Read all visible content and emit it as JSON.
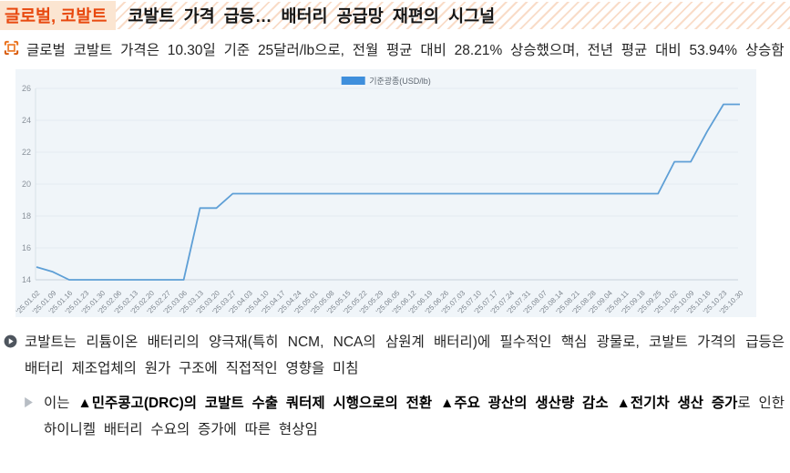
{
  "header": {
    "tag": "글로벌, 코발트",
    "title": "코발트 가격 급등… 배터리 공급망 재편의 시그널"
  },
  "summary": {
    "text": "글로벌 코발트 가격은 10.30일 기준 25달러/lb으로, 전월 평균 대비 28.21% 상승했으며, 전년 평균 대비 53.94% 상승함"
  },
  "chart_data": {
    "type": "line",
    "title": "",
    "xlabel": "",
    "ylabel": "USD/lb",
    "legend": [
      "기준광종(USD/lb)"
    ],
    "legend_position": "top-center",
    "grid": true,
    "ylim": [
      14,
      26
    ],
    "yticks": [
      14,
      16,
      18,
      20,
      22,
      24,
      26
    ],
    "x": [
      "'25.01.02",
      "'25.01.09",
      "'25.01.16",
      "'25.01.23",
      "'25.01.30",
      "'25.02.06",
      "'25.02.13",
      "'25.02.20",
      "'25.02.27",
      "'25.03.06",
      "'25.03.13",
      "'25.03.20",
      "'25.03.27",
      "'25.04.03",
      "'25.04.10",
      "'25.04.17",
      "'25.04.24",
      "'25.05.01",
      "'25.05.08",
      "'25.05.15",
      "'25.05.22",
      "'25.05.29",
      "'25.06.05",
      "'25.06.12",
      "'25.06.19",
      "'25.06.26",
      "'25.07.03",
      "'25.07.10",
      "'25.07.17",
      "'25.07.24",
      "'25.07.31",
      "'25.08.07",
      "'25.08.14",
      "'25.08.21",
      "'25.08.28",
      "'25.09.04",
      "'25.09.11",
      "'25.09.18",
      "'25.09.25",
      "'25.10.02",
      "'25.10.09",
      "'25.10.16",
      "'25.10.23",
      "'25.10.30"
    ],
    "series": [
      {
        "name": "기준광종(USD/lb)",
        "values": [
          14.8,
          14.5,
          14.0,
          14.0,
          14.0,
          14.0,
          14.0,
          14.0,
          14.0,
          14.0,
          18.5,
          18.5,
          19.4,
          19.4,
          19.4,
          19.4,
          19.4,
          19.4,
          19.4,
          19.4,
          19.4,
          19.4,
          19.4,
          19.4,
          19.4,
          19.4,
          19.4,
          19.4,
          19.4,
          19.4,
          19.4,
          19.4,
          19.4,
          19.4,
          19.4,
          19.4,
          19.4,
          19.4,
          19.4,
          21.4,
          21.4,
          23.3,
          25.0,
          25.0
        ]
      }
    ],
    "colors": {
      "line": "#5e9fd6",
      "legend_swatch": "#3f8fdc",
      "plot_bg": "#f0f5f9",
      "grid": "#e3eaf1",
      "axis": "#c7d1da"
    }
  },
  "insight": {
    "text": "코발트는 리튬이온 배터리의 양극재(특히 NCM, NCA의 삼원계 배터리)에 필수적인 핵심 광물로, 코발트 가격의 급등은 배터리 제조업체의 원가 구조에 직접적인 영향을 미침"
  },
  "cause": {
    "prefix": "이는 ",
    "bold": "▲민주콩고(DRC)의 코발트 수출 쿼터제 시행으로의 전환 ▲주요 광산의 생산량 감소 ▲전기차 생산 증가",
    "suffix": "로 인한 하이니켈 배터리 수요의 증가에 따른 현상임"
  },
  "colors": {
    "accent": "#e8490f",
    "tag_bg": "#fbe5d1",
    "header_stripe": "#f9dcc8"
  }
}
